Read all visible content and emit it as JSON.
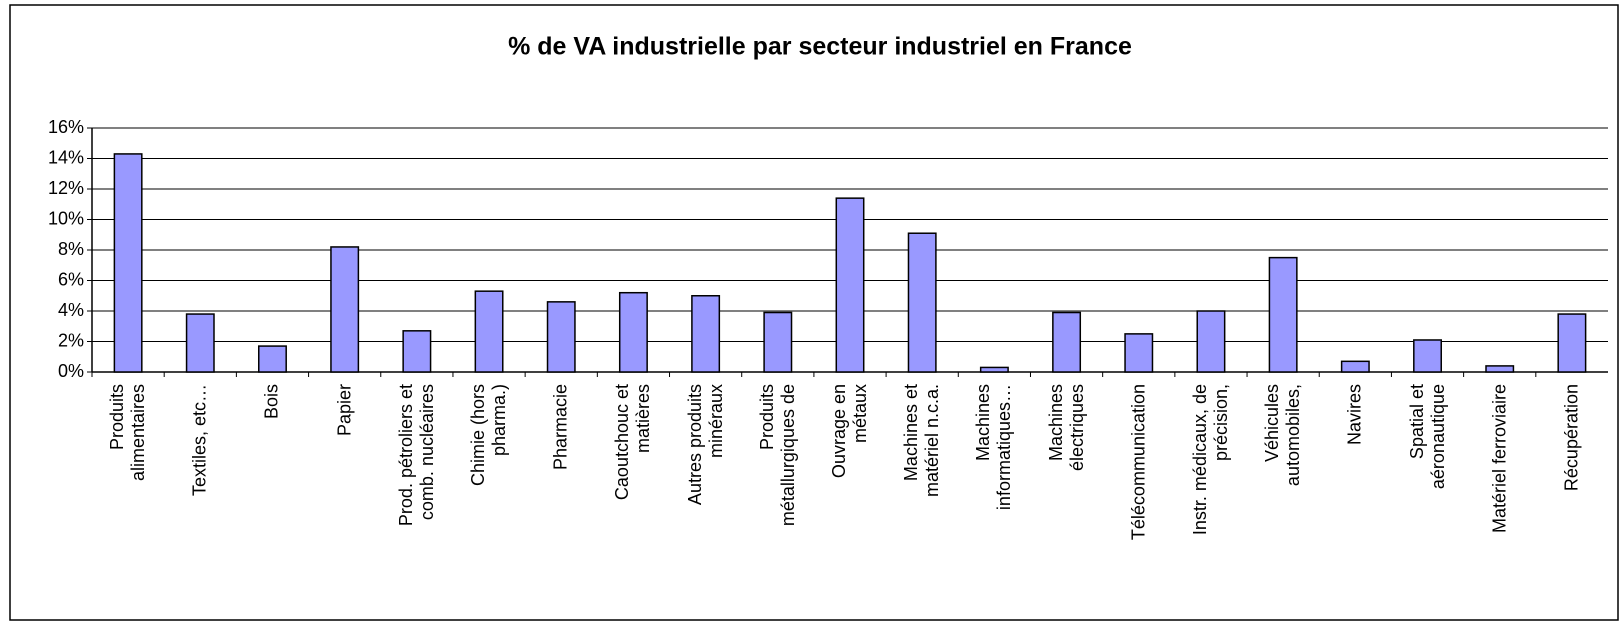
{
  "chart_data": {
    "type": "bar",
    "title": "% de VA industrielle par secteur industriel en France",
    "categories": [
      "Produits\nalimentaires",
      "Textiles, etc…",
      "Bois",
      "Papier",
      "Prod. pétroliers et\ncomb. nucléaires",
      "Chimie (hors\npharma.)",
      "Pharmacie",
      "Caoutchouc et\nmatières",
      "Autres produits\nminéraux",
      "Produits\nmétallurgiques de",
      "Ouvrage en\nmétaux",
      "Machines et\nmatériel n.c.a.",
      "Machines\ninformatiques…",
      "Machines\nélectriques",
      "Télécommunication",
      "Instr. médicaux, de\nprécision,",
      "Véhicules\nautomobiles,",
      "Navires",
      "Spatial et\naéronautique",
      "Matériel ferroviaire",
      "Récupération"
    ],
    "values": [
      14.3,
      3.8,
      1.7,
      8.2,
      2.7,
      5.3,
      4.6,
      5.2,
      5.0,
      3.9,
      11.4,
      9.1,
      0.3,
      3.9,
      2.5,
      4.0,
      7.5,
      0.7,
      2.1,
      0.4,
      3.8
    ],
    "color": "#9999ff",
    "ylim": [
      0,
      16
    ],
    "yticks": [
      {
        "value": 0,
        "label": "0%"
      },
      {
        "value": 2,
        "label": "2%"
      },
      {
        "value": 4,
        "label": "4%"
      },
      {
        "value": 6,
        "label": "6%"
      },
      {
        "value": 8,
        "label": "8%"
      },
      {
        "value": 10,
        "label": "10%"
      },
      {
        "value": 12,
        "label": "12%"
      },
      {
        "value": 14,
        "label": "14%"
      },
      {
        "value": 16,
        "label": "16%"
      }
    ],
    "grid": true
  }
}
